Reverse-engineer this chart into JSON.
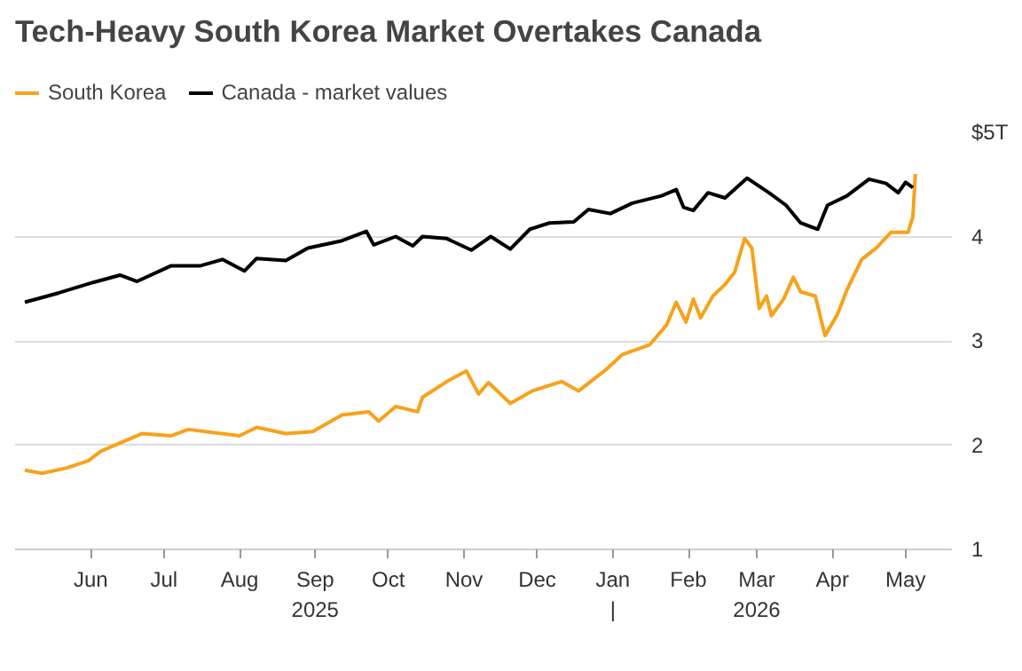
{
  "chart_data": {
    "type": "line",
    "title": "Tech-Heavy South Korea Market Overtakes Canada",
    "xlim": [
      "2025-05-01",
      "2026-05-20"
    ],
    "xticks": [
      {
        "value": "2025-06-01",
        "label": "Jun"
      },
      {
        "value": "2025-07-01",
        "label": "Jul"
      },
      {
        "value": "2025-08-01",
        "label": "Aug"
      },
      {
        "value": "2025-09-01",
        "label": "Sep\n2025"
      },
      {
        "value": "2025-10-01",
        "label": "Oct"
      },
      {
        "value": "2025-11-01",
        "label": "Nov"
      },
      {
        "value": "2025-12-01",
        "label": "Dec"
      },
      {
        "value": "2026-01-01",
        "label": "Jan\n|"
      },
      {
        "value": "2026-02-01",
        "label": "Feb"
      },
      {
        "value": "2026-03-01",
        "label": "Mar\n2026"
      },
      {
        "value": "2026-04-01",
        "label": "Apr"
      },
      {
        "value": "2026-05-01",
        "label": "May"
      }
    ],
    "ylim": [
      1,
      5
    ],
    "yticks": [
      1,
      2,
      3,
      4,
      {
        "value": 5,
        "label": "$5T"
      }
    ],
    "grid": "y",
    "legend": "top left",
    "line_style": "solid",
    "marker": "none",
    "series": [
      {
        "name": "South Korea",
        "color": "#f7a21b",
        "x": [
          "2025-05-05",
          "2025-05-12",
          "2025-05-22",
          "2025-05-31",
          "2025-06-05",
          "2025-06-13",
          "2025-06-22",
          "2025-07-04",
          "2025-07-11",
          "2025-08-01",
          "2025-08-08",
          "2025-08-20",
          "2025-08-31",
          "2025-09-12",
          "2025-09-23",
          "2025-09-27",
          "2025-10-04",
          "2025-10-13",
          "2025-10-15",
          "2025-10-25",
          "2025-11-02",
          "2025-11-07",
          "2025-11-11",
          "2025-11-20",
          "2025-11-29",
          "2025-12-11",
          "2025-12-18",
          "2025-12-29",
          "2026-01-05",
          "2026-01-16",
          "2026-01-23",
          "2026-01-27",
          "2026-01-31",
          "2026-02-03",
          "2026-02-06",
          "2026-02-11",
          "2026-02-16",
          "2026-02-20",
          "2026-02-24",
          "2026-02-27",
          "2026-03-02",
          "2026-03-05",
          "2026-03-07",
          "2026-03-12",
          "2026-03-16",
          "2026-03-19",
          "2026-03-25",
          "2026-03-29",
          "2026-04-03",
          "2026-04-07",
          "2026-04-13",
          "2026-04-19",
          "2026-04-25",
          "2026-05-02",
          "2026-05-04",
          "2026-05-05"
        ],
        "values": [
          1.76,
          1.73,
          1.78,
          1.85,
          1.94,
          2.02,
          2.11,
          2.09,
          2.15,
          2.09,
          2.17,
          2.11,
          2.13,
          2.29,
          2.32,
          2.23,
          2.37,
          2.32,
          2.46,
          2.61,
          2.71,
          2.49,
          2.6,
          2.4,
          2.52,
          2.61,
          2.52,
          2.72,
          2.87,
          2.96,
          3.15,
          3.37,
          3.18,
          3.4,
          3.22,
          3.43,
          3.54,
          3.66,
          3.98,
          3.89,
          3.31,
          3.43,
          3.24,
          3.4,
          3.61,
          3.47,
          3.43,
          3.05,
          3.25,
          3.49,
          3.78,
          3.89,
          4.04,
          4.04,
          4.19,
          4.6
        ]
      },
      {
        "name": "Canada - market values",
        "color": "#000000",
        "x": [
          "2025-05-05",
          "2025-05-19",
          "2025-06-02",
          "2025-06-13",
          "2025-06-20",
          "2025-07-04",
          "2025-07-16",
          "2025-07-25",
          "2025-08-03",
          "2025-08-08",
          "2025-08-20",
          "2025-08-29",
          "2025-09-12",
          "2025-09-22",
          "2025-09-25",
          "2025-10-04",
          "2025-10-11",
          "2025-10-15",
          "2025-10-25",
          "2025-11-04",
          "2025-11-12",
          "2025-11-20",
          "2025-11-28",
          "2025-12-06",
          "2025-12-16",
          "2025-12-22",
          "2025-12-31",
          "2026-01-09",
          "2026-01-21",
          "2026-01-27",
          "2026-01-30",
          "2026-02-03",
          "2026-02-09",
          "2026-02-16",
          "2026-02-25",
          "2026-03-06",
          "2026-03-13",
          "2026-03-19",
          "2026-03-26",
          "2026-03-30",
          "2026-04-07",
          "2026-04-16",
          "2026-04-23",
          "2026-04-28",
          "2026-05-01",
          "2026-05-04"
        ],
        "values": [
          3.37,
          3.46,
          3.56,
          3.63,
          3.57,
          3.72,
          3.72,
          3.78,
          3.67,
          3.79,
          3.77,
          3.89,
          3.96,
          4.05,
          3.92,
          4.0,
          3.91,
          4.0,
          3.98,
          3.87,
          4.0,
          3.88,
          4.07,
          4.13,
          4.14,
          4.26,
          4.22,
          4.32,
          4.39,
          4.45,
          4.28,
          4.25,
          4.42,
          4.37,
          4.56,
          4.42,
          4.3,
          4.13,
          4.07,
          4.3,
          4.39,
          4.55,
          4.51,
          4.42,
          4.52,
          4.47
        ]
      }
    ]
  }
}
